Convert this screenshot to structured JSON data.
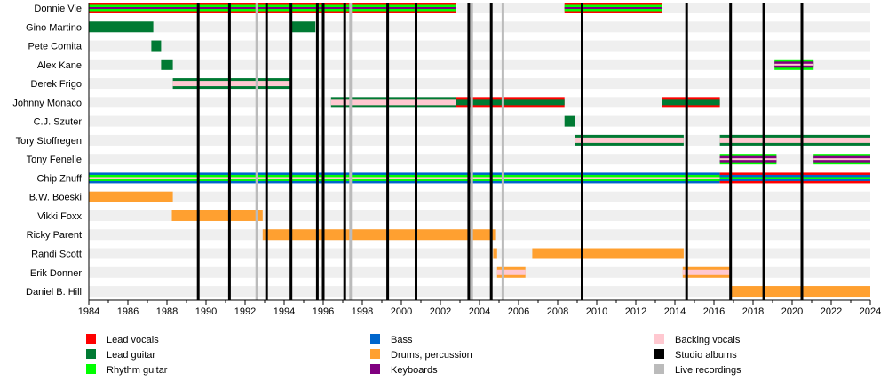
{
  "chart_data": {
    "type": "timeline",
    "xlim": [
      1984,
      2024
    ],
    "x_ticks": [
      "1984",
      "1986",
      "1988",
      "1990",
      "1992",
      "1994",
      "1996",
      "1998",
      "2000",
      "2002",
      "2004",
      "2006",
      "2008",
      "2010",
      "2012",
      "2014",
      "2016",
      "2018",
      "2020",
      "2022",
      "2024"
    ],
    "roles": {
      "lead_vocals": {
        "label": "Lead vocals",
        "color": "#ff0000"
      },
      "lead_guitar": {
        "label": "Lead guitar",
        "color": "#007a33"
      },
      "rhythm_guitar": {
        "label": "Rhythm guitar",
        "color": "#00ff00"
      },
      "bass": {
        "label": "Bass",
        "color": "#0066cc"
      },
      "drums": {
        "label": "Drums, percussion",
        "color": "#ffa030"
      },
      "keyboards": {
        "label": "Keyboards",
        "color": "#800080"
      },
      "backing_vocals": {
        "label": "Backing vocals",
        "color": "#ffc8d0"
      },
      "studio": {
        "label": "Studio albums",
        "color": "#000000"
      },
      "live": {
        "label": "Live recordings",
        "color": "#bbbbbb"
      }
    },
    "legend_order": [
      [
        "lead_vocals",
        "lead_guitar",
        "rhythm_guitar"
      ],
      [
        "bass",
        "drums",
        "keyboards"
      ],
      [
        "backing_vocals",
        "studio",
        "live"
      ]
    ],
    "studio_albums": [
      1989.6,
      1991.2,
      1993.1,
      1994.35,
      1995.7,
      1996.0,
      1997.1,
      1999.3,
      2000.75,
      2003.45,
      2004.6,
      2009.25,
      2014.6,
      2016.85,
      2018.55,
      2020.5
    ],
    "live_recordings": [
      1992.6,
      1997.4,
      2003.6,
      2005.2
    ],
    "members": [
      {
        "name": "Donnie Vie",
        "bars": [
          {
            "start": 1984,
            "end": 2002.8,
            "roles": [
              "lead_vocals",
              "rhythm_guitar",
              "keyboards"
            ]
          },
          {
            "start": 2008.35,
            "end": 2013.35,
            "roles": [
              "lead_vocals",
              "rhythm_guitar",
              "keyboards"
            ]
          }
        ]
      },
      {
        "name": "Gino Martino",
        "bars": [
          {
            "start": 1984,
            "end": 1987.3,
            "roles": [
              "lead_guitar"
            ]
          },
          {
            "start": 1994.3,
            "end": 1995.6,
            "roles": [
              "lead_guitar"
            ]
          }
        ]
      },
      {
        "name": "Pete Comita",
        "bars": [
          {
            "start": 1987.2,
            "end": 1987.7,
            "roles": [
              "lead_guitar"
            ]
          }
        ]
      },
      {
        "name": "Alex Kane",
        "bars": [
          {
            "start": 1987.7,
            "end": 1988.3,
            "roles": [
              "lead_guitar"
            ]
          },
          {
            "start": 2019.1,
            "end": 2021.1,
            "roles": [
              "rhythm_guitar",
              "keyboards",
              "backing_vocals"
            ]
          }
        ]
      },
      {
        "name": "Derek Frigo",
        "bars": [
          {
            "start": 1988.3,
            "end": 1994.4,
            "roles": [
              "lead_guitar",
              "backing_vocals"
            ]
          }
        ]
      },
      {
        "name": "Johnny Monaco",
        "bars": [
          {
            "start": 1996.4,
            "end": 2002.8,
            "roles": [
              "lead_guitar",
              "backing_vocals"
            ]
          },
          {
            "start": 2002.8,
            "end": 2008.35,
            "roles": [
              "lead_vocals",
              "lead_guitar"
            ]
          },
          {
            "start": 2013.35,
            "end": 2016.3,
            "roles": [
              "lead_vocals",
              "lead_guitar"
            ]
          }
        ]
      },
      {
        "name": "C.J. Szuter",
        "bars": [
          {
            "start": 2008.35,
            "end": 2008.9,
            "roles": [
              "lead_guitar"
            ]
          }
        ]
      },
      {
        "name": "Tory Stoffregen",
        "bars": [
          {
            "start": 2008.9,
            "end": 2014.45,
            "roles": [
              "lead_guitar",
              "backing_vocals"
            ]
          },
          {
            "start": 2016.3,
            "end": 2024,
            "roles": [
              "lead_guitar",
              "backing_vocals"
            ]
          }
        ]
      },
      {
        "name": "Tony Fenelle",
        "bars": [
          {
            "start": 2016.3,
            "end": 2019.2,
            "roles": [
              "rhythm_guitar",
              "keyboards",
              "backing_vocals"
            ]
          },
          {
            "start": 2021.1,
            "end": 2024,
            "roles": [
              "rhythm_guitar",
              "keyboards",
              "backing_vocals"
            ]
          }
        ]
      },
      {
        "name": "Chip Znuff",
        "bars": [
          {
            "start": 1984,
            "end": 2016.3,
            "roles": [
              "bass",
              "rhythm_guitar",
              "backing_vocals"
            ]
          },
          {
            "start": 2016.3,
            "end": 2024,
            "roles": [
              "lead_vocals",
              "bass",
              "rhythm_guitar"
            ]
          }
        ]
      },
      {
        "name": "B.W. Boeski",
        "bars": [
          {
            "start": 1984,
            "end": 1988.3,
            "roles": [
              "drums"
            ]
          }
        ]
      },
      {
        "name": "Vikki Foxx",
        "bars": [
          {
            "start": 1988.25,
            "end": 1992.9,
            "roles": [
              "drums"
            ]
          }
        ]
      },
      {
        "name": "Ricky Parent",
        "bars": [
          {
            "start": 1992.9,
            "end": 2004.8,
            "roles": [
              "drums"
            ]
          }
        ]
      },
      {
        "name": "Randi Scott",
        "bars": [
          {
            "start": 2004.7,
            "end": 2004.9,
            "roles": [
              "drums"
            ]
          },
          {
            "start": 2006.7,
            "end": 2014.45,
            "roles": [
              "drums"
            ]
          }
        ]
      },
      {
        "name": "Erik Donner",
        "bars": [
          {
            "start": 2004.9,
            "end": 2006.35,
            "roles": [
              "drums",
              "backing_vocals"
            ]
          },
          {
            "start": 2014.4,
            "end": 2016.8,
            "roles": [
              "drums",
              "backing_vocals"
            ]
          }
        ]
      },
      {
        "name": "Daniel B. Hill",
        "bars": [
          {
            "start": 2016.85,
            "end": 2024,
            "roles": [
              "drums"
            ]
          }
        ]
      }
    ]
  }
}
